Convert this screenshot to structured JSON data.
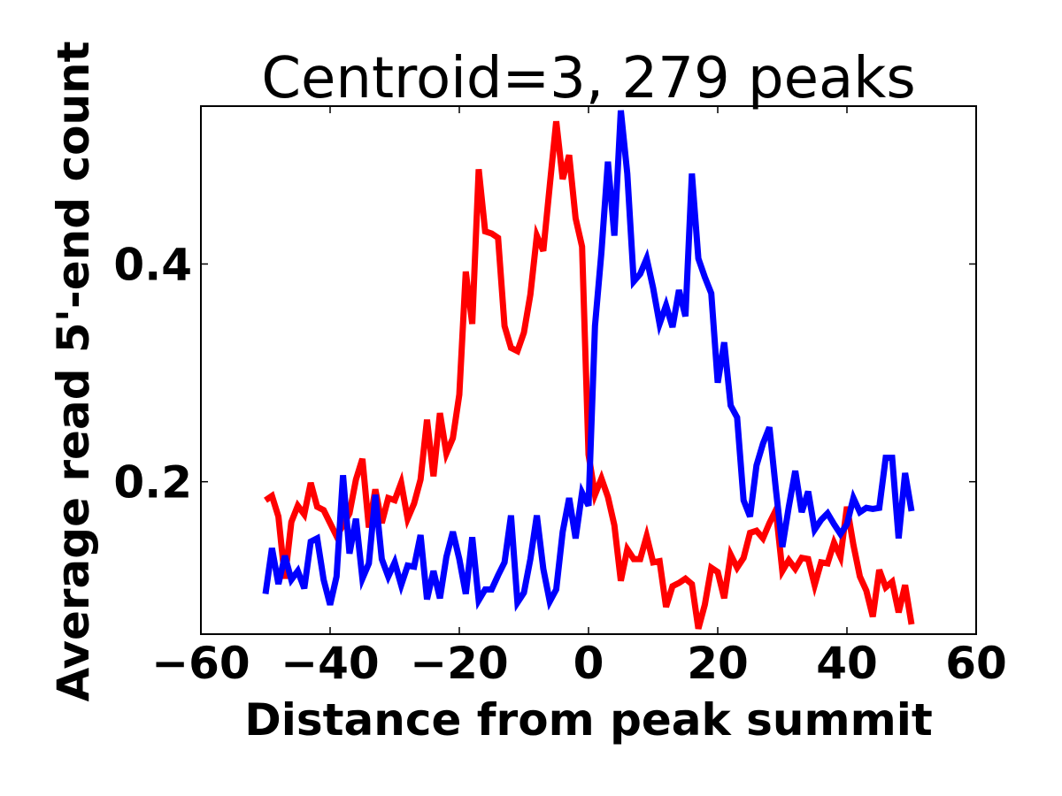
{
  "chart_data": {
    "type": "line",
    "title": "Centroid=3, 279 peaks",
    "xlabel": "Distance from peak summit",
    "ylabel": "Average read 5'-end count",
    "xlim": [
      -60,
      60
    ],
    "ylim": [
      0.06,
      0.545
    ],
    "xticks": [
      -60,
      -40,
      -20,
      0,
      20,
      40,
      60
    ],
    "xtick_labels": [
      "−60",
      "−40",
      "−20",
      "0",
      "20",
      "40",
      "60"
    ],
    "yticks": [
      0.2,
      0.4
    ],
    "ytick_labels": [
      "0.2",
      "0.4"
    ],
    "grid": false,
    "legend": "none",
    "series": [
      {
        "name": "red",
        "color": "#ff0000",
        "x": [
          -50,
          -49,
          -48,
          -47,
          -46,
          -45,
          -44,
          -43,
          -42,
          -41,
          -40,
          -39,
          -38,
          -37,
          -36,
          -35,
          -34,
          -33,
          -32,
          -31,
          -30,
          -29,
          -28,
          -27,
          -26,
          -25,
          -24,
          -23,
          -22,
          -21,
          -20,
          -19,
          -18,
          -17,
          -16,
          -15,
          -14,
          -13,
          -12,
          -11,
          -10,
          -9,
          -8,
          -7,
          -6,
          -5,
          -4,
          -3,
          -2,
          -1,
          0,
          1,
          2,
          3,
          4,
          5,
          6,
          7,
          8,
          9,
          10,
          11,
          12,
          13,
          14,
          15,
          16,
          17,
          18,
          19,
          20,
          21,
          22,
          23,
          24,
          25,
          26,
          27,
          28,
          29,
          30,
          31,
          32,
          33,
          34,
          35,
          36,
          37,
          38,
          39,
          40,
          41,
          42,
          43,
          44,
          45,
          46,
          47,
          48,
          49,
          50
        ],
        "values": [
          0.183,
          0.187,
          0.168,
          0.111,
          0.163,
          0.178,
          0.17,
          0.199,
          0.177,
          0.174,
          0.162,
          0.15,
          0.16,
          0.171,
          0.202,
          0.221,
          0.158,
          0.193,
          0.162,
          0.185,
          0.183,
          0.199,
          0.166,
          0.18,
          0.202,
          0.257,
          0.205,
          0.263,
          0.226,
          0.24,
          0.28,
          0.393,
          0.345,
          0.487,
          0.43,
          0.428,
          0.424,
          0.343,
          0.323,
          0.32,
          0.337,
          0.372,
          0.426,
          0.412,
          0.472,
          0.531,
          0.478,
          0.5,
          0.442,
          0.416,
          0.225,
          0.188,
          0.203,
          0.186,
          0.16,
          0.109,
          0.138,
          0.129,
          0.129,
          0.15,
          0.126,
          0.127,
          0.085,
          0.104,
          0.107,
          0.111,
          0.106,
          0.065,
          0.087,
          0.121,
          0.117,
          0.093,
          0.133,
          0.121,
          0.13,
          0.153,
          0.155,
          0.148,
          0.162,
          0.174,
          0.118,
          0.128,
          0.12,
          0.13,
          0.129,
          0.105,
          0.126,
          0.125,
          0.144,
          0.131,
          0.177,
          0.142,
          0.113,
          0.1,
          0.076,
          0.119,
          0.103,
          0.108,
          0.08,
          0.105,
          0.069
        ]
      },
      {
        "name": "blue",
        "color": "#0000ff",
        "x": [
          -50,
          -49,
          -48,
          -47,
          -46,
          -45,
          -44,
          -43,
          -42,
          -41,
          -40,
          -39,
          -38,
          -37,
          -36,
          -35,
          -34,
          -33,
          -32,
          -31,
          -30,
          -29,
          -28,
          -27,
          -26,
          -25,
          -24,
          -23,
          -22,
          -21,
          -20,
          -19,
          -18,
          -17,
          -16,
          -15,
          -14,
          -13,
          -12,
          -11,
          -10,
          -9,
          -8,
          -7,
          -6,
          -5,
          -4,
          -3,
          -2,
          -1,
          0,
          1,
          2,
          3,
          4,
          5,
          6,
          7,
          8,
          9,
          10,
          11,
          12,
          13,
          14,
          15,
          16,
          17,
          18,
          19,
          20,
          21,
          22,
          23,
          24,
          25,
          26,
          27,
          28,
          29,
          30,
          31,
          32,
          33,
          34,
          35,
          36,
          37,
          38,
          39,
          40,
          41,
          42,
          43,
          44,
          45,
          46,
          47,
          48,
          49,
          50
        ],
        "values": [
          0.097,
          0.139,
          0.106,
          0.132,
          0.11,
          0.118,
          0.102,
          0.145,
          0.148,
          0.11,
          0.087,
          0.113,
          0.206,
          0.134,
          0.166,
          0.111,
          0.125,
          0.188,
          0.129,
          0.113,
          0.126,
          0.105,
          0.123,
          0.122,
          0.151,
          0.092,
          0.118,
          0.093,
          0.131,
          0.154,
          0.129,
          0.097,
          0.149,
          0.091,
          0.101,
          0.101,
          0.114,
          0.126,
          0.169,
          0.089,
          0.098,
          0.129,
          0.169,
          0.12,
          0.09,
          0.101,
          0.154,
          0.185,
          0.148,
          0.19,
          0.178,
          0.343,
          0.411,
          0.494,
          0.426,
          0.541,
          0.483,
          0.384,
          0.391,
          0.405,
          0.378,
          0.345,
          0.362,
          0.342,
          0.376,
          0.352,
          0.483,
          0.405,
          0.388,
          0.373,
          0.291,
          0.328,
          0.27,
          0.259,
          0.183,
          0.168,
          0.215,
          0.235,
          0.25,
          0.193,
          0.14,
          0.177,
          0.21,
          0.172,
          0.191,
          0.156,
          0.165,
          0.171,
          0.161,
          0.152,
          0.161,
          0.185,
          0.172,
          0.176,
          0.175,
          0.176,
          0.222,
          0.222,
          0.148,
          0.208,
          0.173
        ]
      }
    ]
  }
}
